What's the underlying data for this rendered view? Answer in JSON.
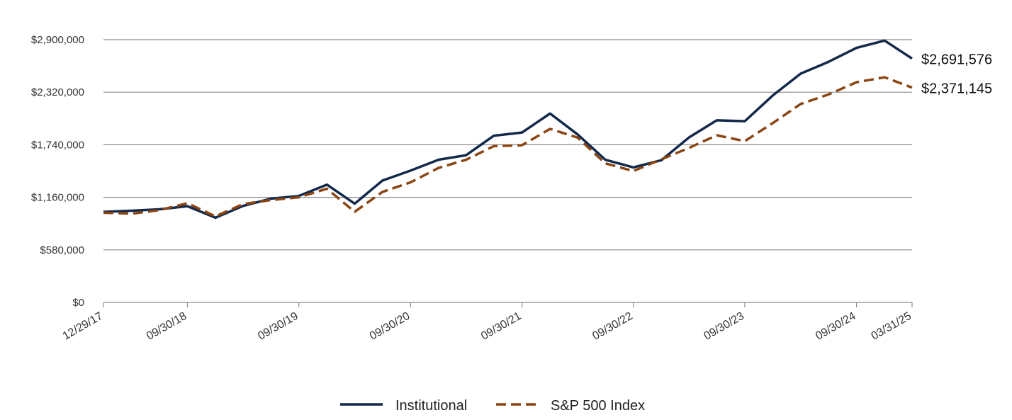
{
  "chart_data": {
    "type": "line",
    "title": "",
    "xlabel": "",
    "ylabel": "",
    "ylim": [
      0,
      2900000
    ],
    "y_ticks": [
      0,
      580000,
      1160000,
      1740000,
      2320000,
      2900000
    ],
    "y_tick_labels": [
      "$0",
      "$580,000",
      "$1,160,000",
      "$1,740,000",
      "$2,320,000",
      "$2,900,000"
    ],
    "x_tick_labels": [
      "12/29/17",
      "09/30/18",
      "09/30/19",
      "09/30/20",
      "09/30/21",
      "09/30/22",
      "09/30/23",
      "09/30/24",
      "03/31/25"
    ],
    "x_tick_dates": [
      "2017-12-29",
      "2018-09-30",
      "2019-09-30",
      "2020-09-30",
      "2021-09-30",
      "2022-09-30",
      "2023-09-30",
      "2024-09-30",
      "2025-03-31"
    ],
    "x": [
      "2017-12-29",
      "2018-03-31",
      "2018-06-30",
      "2018-09-30",
      "2018-12-31",
      "2019-03-31",
      "2019-06-30",
      "2019-09-30",
      "2019-12-31",
      "2020-03-31",
      "2020-06-30",
      "2020-09-30",
      "2020-12-31",
      "2021-03-31",
      "2021-06-30",
      "2021-09-30",
      "2021-12-31",
      "2022-03-31",
      "2022-06-30",
      "2022-09-30",
      "2022-12-31",
      "2023-03-31",
      "2023-06-30",
      "2023-09-30",
      "2023-12-31",
      "2024-03-31",
      "2024-06-30",
      "2024-09-30",
      "2024-12-31",
      "2025-03-31"
    ],
    "grid": true,
    "legend_position": "bottom-center",
    "series": [
      {
        "name": "Institutional",
        "color": "#13294b",
        "dash": "solid",
        "end_label": "$2,691,576",
        "values": [
          1000000,
          1012000,
          1028000,
          1062000,
          935000,
          1065000,
          1145000,
          1175000,
          1300000,
          1090000,
          1345000,
          1455000,
          1575000,
          1625000,
          1840000,
          1875000,
          2085000,
          1855000,
          1575000,
          1490000,
          1570000,
          1820000,
          2010000,
          2000000,
          2285000,
          2525000,
          2655000,
          2810000,
          2890000,
          2691576
        ]
      },
      {
        "name": "S&P 500 Index",
        "color": "#8b4513",
        "dash": "dashed",
        "end_label": "$2,371,145",
        "values": [
          990000,
          980000,
          1018000,
          1095000,
          950000,
          1085000,
          1130000,
          1160000,
          1255000,
          1000000,
          1220000,
          1325000,
          1485000,
          1575000,
          1725000,
          1735000,
          1915000,
          1820000,
          1535000,
          1450000,
          1580000,
          1705000,
          1845000,
          1780000,
          1980000,
          2190000,
          2295000,
          2430000,
          2485000,
          2371145
        ]
      }
    ]
  }
}
